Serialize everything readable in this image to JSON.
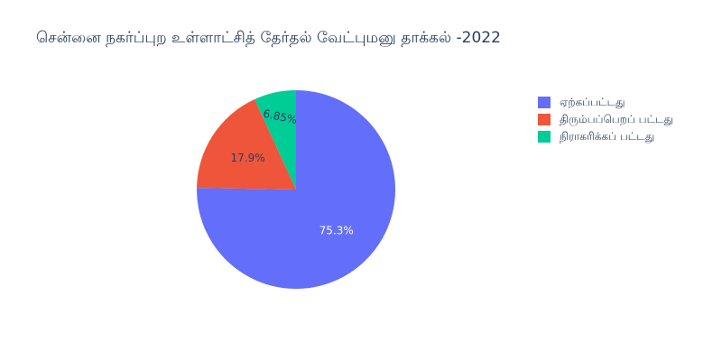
{
  "chart_data": {
    "type": "pie",
    "title": "சென்னை நகர்ப்புற உள்ளாட்சித் தேர்தல் வேட்புமனு தாக்கல்  -2022",
    "labels": [
      "ஏற்கப்பட்டது",
      "திரும்பப்பெறப் பட்டது",
      "நிராகரிக்கப் பட்டது"
    ],
    "values": [
      75.3,
      17.9,
      6.85
    ],
    "display_labels": [
      "75.3%",
      "17.9%",
      "6.85%"
    ],
    "colors": [
      "#636efa",
      "#ef553b",
      "#00cc96"
    ],
    "legend_position": "right"
  }
}
